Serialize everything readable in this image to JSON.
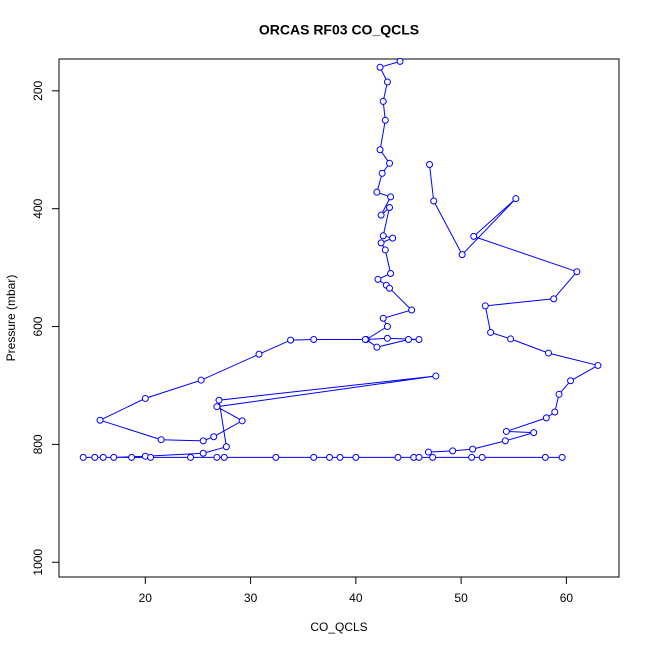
{
  "chart_data": {
    "type": "line",
    "title": "ORCAS RF03 CO_QCLS",
    "x_label": "CO_QCLS",
    "y_label": "Pressure (mbar)",
    "color": "#0000ff",
    "x": [
      44.2,
      42.3,
      43.0,
      42.6,
      42.8,
      42.3,
      43.2,
      42.5,
      42.0,
      43.3,
      42.4,
      43.2,
      42.6,
      43.5,
      42.4,
      42.8,
      43.3,
      42.1,
      42.9,
      43.2,
      45.3,
      42.6,
      43.0,
      41.0,
      42.0,
      45.0,
      46.0,
      43.0,
      40.9,
      36.0,
      33.8,
      30.8,
      25.3,
      20.0,
      15.7,
      21.5,
      25.5,
      26.5,
      29.2,
      26.8,
      47.6,
      27.0,
      27.7,
      25.5,
      20.0,
      17.0,
      15.2,
      14.1,
      16.0,
      18.7,
      20.5,
      24.3,
      26.8,
      27.5,
      32.4,
      36.0,
      37.5,
      38.5,
      40.0,
      44.0,
      45.5,
      46.0,
      51.0,
      52.0,
      58.0,
      59.6,
      47.3,
      46.9,
      49.2,
      51.1,
      54.2,
      56.9,
      54.3,
      58.1,
      58.9,
      59.3,
      60.4,
      63.0,
      58.3,
      54.7,
      52.8,
      52.3,
      58.8,
      61.0,
      51.2,
      55.2,
      50.1,
      47.4,
      47.0
    ],
    "values": [
      150,
      160,
      185,
      218,
      250,
      300,
      323,
      340,
      372,
      380,
      411,
      398,
      446,
      450,
      458,
      470,
      510,
      520,
      530,
      535,
      572,
      586,
      600,
      622,
      635,
      622,
      622,
      620,
      622,
      622,
      623,
      647,
      691,
      722,
      759,
      792,
      794,
      787,
      760,
      736,
      684,
      725,
      804,
      815,
      820,
      822,
      822,
      822,
      822,
      822,
      822,
      822,
      822,
      822,
      822,
      822,
      822,
      822,
      822,
      822,
      822,
      822,
      822,
      822,
      822,
      822,
      822,
      813,
      811,
      808,
      794,
      780,
      778,
      755,
      745,
      715,
      692,
      666,
      645,
      621,
      610,
      565,
      553,
      507,
      447,
      383,
      478,
      387,
      325
    ],
    "xlim": [
      11.8,
      65
    ],
    "ylim": [
      1025,
      146
    ],
    "xticks": [
      20,
      30,
      40,
      50,
      60
    ],
    "yticks": [
      200,
      400,
      600,
      800,
      1000
    ]
  }
}
